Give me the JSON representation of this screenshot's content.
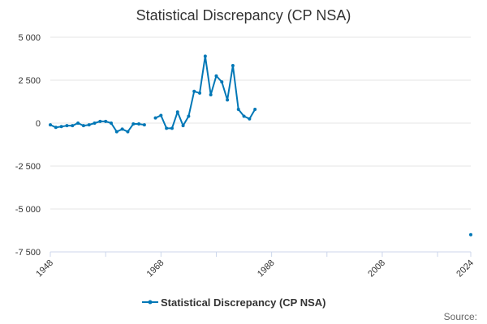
{
  "chart_data": {
    "type": "line",
    "title": "Statistical Discrepancy (CP NSA)",
    "xlabel": "",
    "ylabel": "",
    "xlim": [
      1948,
      2024
    ],
    "ylim": [
      -7500,
      5000
    ],
    "yticks": [
      5000,
      2500,
      0,
      -2500,
      -5000,
      -7500
    ],
    "ytick_labels": [
      "5 000",
      "2 500",
      "0",
      "-2 500",
      "-5 000",
      "-7 500"
    ],
    "xticks": [
      1948,
      1968,
      1988,
      2008,
      2024
    ],
    "xtick_labels": [
      "1948",
      "1968",
      "1988",
      "2008",
      "2024"
    ],
    "legend_position": "bottom",
    "source_label": "Source:",
    "color": "#0077b6",
    "series": [
      {
        "name": "Statistical Discrepancy (CP NSA)",
        "points": [
          [
            1948,
            -100
          ],
          [
            1949,
            -250
          ],
          [
            1950,
            -200
          ],
          [
            1951,
            -150
          ],
          [
            1952,
            -150
          ],
          [
            1953,
            0
          ],
          [
            1954,
            -150
          ],
          [
            1955,
            -100
          ],
          [
            1956,
            0
          ],
          [
            1957,
            100
          ],
          [
            1958,
            100
          ],
          [
            1959,
            0
          ],
          [
            1960,
            -500
          ],
          [
            1961,
            -350
          ],
          [
            1962,
            -500
          ],
          [
            1963,
            -50
          ],
          [
            1964,
            -50
          ],
          [
            1965,
            -100
          ],
          [
            1966,
            null
          ],
          [
            1967,
            300
          ],
          [
            1968,
            450
          ],
          [
            1969,
            -300
          ],
          [
            1970,
            -300
          ],
          [
            1971,
            650
          ],
          [
            1972,
            -150
          ],
          [
            1973,
            400
          ],
          [
            1974,
            1850
          ],
          [
            1975,
            1750
          ],
          [
            1976,
            3900
          ],
          [
            1977,
            1650
          ],
          [
            1978,
            2750
          ],
          [
            1979,
            2400
          ],
          [
            1980,
            1350
          ],
          [
            1981,
            3350
          ],
          [
            1982,
            800
          ],
          [
            1983,
            400
          ],
          [
            1984,
            250
          ],
          [
            1985,
            800
          ],
          [
            1986,
            null
          ],
          [
            2024,
            -6500
          ]
        ]
      }
    ]
  }
}
